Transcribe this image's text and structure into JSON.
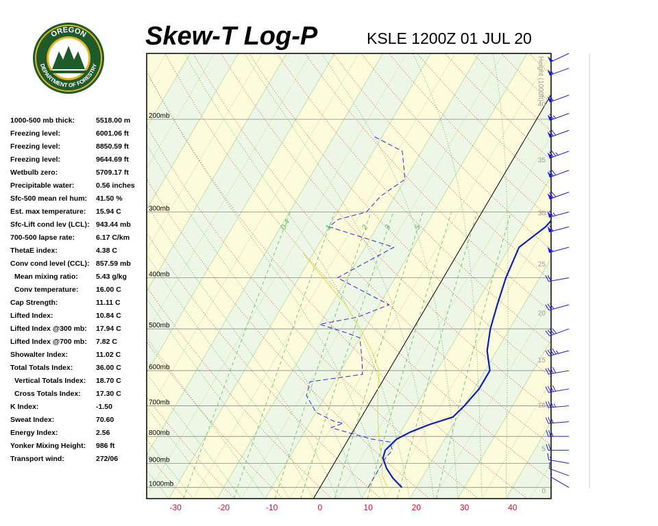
{
  "logo": {
    "text_top": "OREGON",
    "text_bottom": "DEPARTMENT OF FORESTRY"
  },
  "header": {
    "title": "Skew-T Log-P",
    "subtitle": "KSLE 1200Z 01 JUL 20"
  },
  "indices": [
    {
      "label": "1000-500 mb thick:",
      "value": "5518.00 m",
      "indent": false
    },
    {
      "label": "Freezing level:",
      "value": "6001.06 ft",
      "indent": false
    },
    {
      "label": "Freezing level:",
      "value": "8850.59 ft",
      "indent": false
    },
    {
      "label": "Freezing level:",
      "value": "9644.69 ft",
      "indent": false
    },
    {
      "label": "Wetbulb zero:",
      "value": "5709.17 ft",
      "indent": false
    },
    {
      "label": "Precipitable water:",
      "value": "0.56 inches",
      "indent": false
    },
    {
      "label": "Sfc-500 mean rel hum:",
      "value": "41.50 %",
      "indent": false
    },
    {
      "label": "Est. max temperature:",
      "value": "15.94 C",
      "indent": false
    },
    {
      "label": "Sfc-Lift cond lev (LCL):",
      "value": "943.44 mb",
      "indent": false
    },
    {
      "label": "700-500 lapse rate:",
      "value": "6.17 C/km",
      "indent": false
    },
    {
      "label": "ThetaE index:",
      "value": "4.38 C",
      "indent": false
    },
    {
      "label": "Conv cond level (CCL):",
      "value": "857.59 mb",
      "indent": false
    },
    {
      "label": "Mean mixing ratio:",
      "value": "5.43 g/kg",
      "indent": true
    },
    {
      "label": "Conv temperature:",
      "value": "16.00 C",
      "indent": true
    },
    {
      "label": "Cap Strength:",
      "value": "11.11 C",
      "indent": false
    },
    {
      "label": "Lifted Index:",
      "value": "10.84 C",
      "indent": false
    },
    {
      "label": "Lifted Index @300 mb:",
      "value": "17.94 C",
      "indent": false
    },
    {
      "label": "Lifted Index @700 mb:",
      "value": "7.82 C",
      "indent": false
    },
    {
      "label": "Showalter Index:",
      "value": "11.02 C",
      "indent": false
    },
    {
      "label": "Total Totals Index:",
      "value": "36.00 C",
      "indent": false
    },
    {
      "label": "Vertical Totals Index:",
      "value": "18.70 C",
      "indent": true
    },
    {
      "label": "Cross Totals Index:",
      "value": "17.30 C",
      "indent": true
    },
    {
      "label": "K Index:",
      "value": "-1.50",
      "indent": false
    },
    {
      "label": "Sweat Index:",
      "value": "70.60",
      "indent": false
    },
    {
      "label": "Energy Index:",
      "value": "2.56",
      "indent": false
    },
    {
      "label": "Yonker Mixing Height:",
      "value": "986 ft",
      "indent": false
    },
    {
      "label": "Transport wind:",
      "value": "272/06",
      "indent": false
    }
  ],
  "chart_data": {
    "type": "line",
    "title": "Skew-T Log-P",
    "subtitle": "KSLE 1200Z 01 JUL 20",
    "x_axis": {
      "label": "",
      "unit": "C",
      "ticks": [
        -30,
        -20,
        -10,
        0,
        10,
        20,
        30,
        40
      ],
      "range": [
        -36,
        48
      ]
    },
    "y_axis": {
      "scale": "log-pressure",
      "unit": "mb",
      "range": [
        1050,
        150
      ]
    },
    "pressure_labels": [
      {
        "p": 1000,
        "text": "1000mb"
      },
      {
        "p": 900,
        "text": "900mb"
      },
      {
        "p": 800,
        "text": "800mb"
      },
      {
        "p": 700,
        "text": "700mb"
      },
      {
        "p": 600,
        "text": "600mb"
      },
      {
        "p": 500,
        "text": "500mb"
      },
      {
        "p": 400,
        "text": "400mb"
      },
      {
        "p": 300,
        "text": "300mb"
      },
      {
        "p": 200,
        "text": "200mb"
      }
    ],
    "height_axis": {
      "label": "Height (1000ft)",
      "ticks": [
        0,
        5,
        10,
        15,
        20,
        25,
        30,
        35,
        40,
        45,
        50
      ]
    },
    "mixing_ratio_labels": [
      "0.4",
      "1",
      "2",
      "3",
      "5"
    ],
    "mixing_ratios": [
      0.4,
      1,
      2,
      3,
      5,
      8,
      12,
      20
    ],
    "isotherm_spacing": 5,
    "skew_reference": [
      {
        "x": 0,
        "p": 1000
      },
      {
        "x": 45,
        "p": 200
      }
    ],
    "bands": {
      "color_a": "#eef7e6",
      "color_b": "#fdfbdc",
      "width": 10
    },
    "series": [
      {
        "name": "",
        "color": "#0a1fb8",
        "style": "solid",
        "points": [
          {
            "x": 17.0,
            "p": 1000
          },
          {
            "x": 14.0,
            "p": 960
          },
          {
            "x": 11.5,
            "p": 920
          },
          {
            "x": 9.5,
            "p": 880
          },
          {
            "x": 9.0,
            "p": 850
          },
          {
            "x": 10.0,
            "p": 810
          },
          {
            "x": 12.0,
            "p": 785
          },
          {
            "x": 15.0,
            "p": 760
          },
          {
            "x": 19.0,
            "p": 735
          },
          {
            "x": 20.0,
            "p": 700
          },
          {
            "x": 21.0,
            "p": 650
          },
          {
            "x": 21.0,
            "p": 600
          },
          {
            "x": 18.0,
            "p": 550
          },
          {
            "x": 16.0,
            "p": 500
          },
          {
            "x": 14.5,
            "p": 450
          },
          {
            "x": 13.0,
            "p": 400
          },
          {
            "x": 12.0,
            "p": 350
          },
          {
            "x": 15.0,
            "p": 320
          },
          {
            "x": 16.0,
            "p": 300
          },
          {
            "x": 17.0,
            "p": 270
          },
          {
            "x": 19.0,
            "p": 250
          },
          {
            "x": 21.0,
            "p": 235
          },
          {
            "x": 25.0,
            "p": 220
          }
        ]
      },
      {
        "name": "",
        "color": "#2a2ad0",
        "style": "dashed",
        "points": [
          {
            "x": 10.0,
            "p": 1000
          },
          {
            "x": 10.0,
            "p": 940
          },
          {
            "x": 10.0,
            "p": 880
          },
          {
            "x": 10.5,
            "p": 850
          },
          {
            "x": 9.0,
            "p": 820
          },
          {
            "x": 5.0,
            "p": 810
          },
          {
            "x": 0.0,
            "p": 790
          },
          {
            "x": -5.0,
            "p": 770
          },
          {
            "x": -3.0,
            "p": 755
          },
          {
            "x": -5.0,
            "p": 750
          },
          {
            "x": -10.0,
            "p": 720
          },
          {
            "x": -14.0,
            "p": 670
          },
          {
            "x": -15.0,
            "p": 630
          },
          {
            "x": -5.0,
            "p": 610
          },
          {
            "x": -7.0,
            "p": 570
          },
          {
            "x": -10.0,
            "p": 520
          },
          {
            "x": -13.0,
            "p": 510
          },
          {
            "x": -20.0,
            "p": 490
          },
          {
            "x": -13.0,
            "p": 475
          },
          {
            "x": -8.0,
            "p": 450
          },
          {
            "x": -22.0,
            "p": 400
          },
          {
            "x": -14.0,
            "p": 350
          },
          {
            "x": -30.0,
            "p": 320
          },
          {
            "x": -29.0,
            "p": 310
          },
          {
            "x": -24.0,
            "p": 300
          },
          {
            "x": -23.0,
            "p": 280
          },
          {
            "x": -20.0,
            "p": 260
          },
          {
            "x": -24.0,
            "p": 230
          },
          {
            "x": -32.0,
            "p": 215
          }
        ]
      },
      {
        "name": "",
        "color": "#d8d82a",
        "style": "solid",
        "points": [
          {
            "x": 14.0,
            "p": 1000
          },
          {
            "x": 11.5,
            "p": 950
          },
          {
            "x": 10.0,
            "p": 900
          },
          {
            "x": 8.0,
            "p": 850
          },
          {
            "x": 6.0,
            "p": 800
          },
          {
            "x": 4.0,
            "p": 750
          },
          {
            "x": 2.0,
            "p": 700
          },
          {
            "x": 0.0,
            "p": 650
          },
          {
            "x": -2.0,
            "p": 600
          },
          {
            "x": -6.0,
            "p": 550
          },
          {
            "x": -11.0,
            "p": 500
          },
          {
            "x": -17.0,
            "p": 450
          },
          {
            "x": -25.0,
            "p": 400
          },
          {
            "x": -32.0,
            "p": 360
          }
        ]
      }
    ],
    "wind_barbs": [
      {
        "p": 1000,
        "dir": 300,
        "spd": 5
      },
      {
        "p": 950,
        "dir": 290,
        "spd": 10
      },
      {
        "p": 900,
        "dir": 280,
        "spd": 15
      },
      {
        "p": 850,
        "dir": 270,
        "spd": 20
      },
      {
        "p": 800,
        "dir": 270,
        "spd": 25
      },
      {
        "p": 750,
        "dir": 265,
        "spd": 30
      },
      {
        "p": 700,
        "dir": 265,
        "spd": 35
      },
      {
        "p": 650,
        "dir": 260,
        "spd": 40
      },
      {
        "p": 600,
        "dir": 260,
        "spd": 40
      },
      {
        "p": 550,
        "dir": 255,
        "spd": 45
      },
      {
        "p": 500,
        "dir": 250,
        "spd": 40
      },
      {
        "p": 450,
        "dir": 255,
        "spd": 30
      },
      {
        "p": 400,
        "dir": 260,
        "spd": 20
      },
      {
        "p": 350,
        "dir": 255,
        "spd": 55
      },
      {
        "p": 320,
        "dir": 255,
        "spd": 60
      },
      {
        "p": 300,
        "dir": 255,
        "spd": 65
      },
      {
        "p": 275,
        "dir": 250,
        "spd": 70
      },
      {
        "p": 250,
        "dir": 250,
        "spd": 70
      },
      {
        "p": 230,
        "dir": 250,
        "spd": 75
      },
      {
        "p": 210,
        "dir": 250,
        "spd": 70
      },
      {
        "p": 195,
        "dir": 250,
        "spd": 65
      },
      {
        "p": 180,
        "dir": 250,
        "spd": 60
      },
      {
        "p": 160,
        "dir": 250,
        "spd": 55
      },
      {
        "p": 150,
        "dir": 245,
        "spd": 50
      }
    ],
    "grid": true,
    "legend": "none"
  }
}
